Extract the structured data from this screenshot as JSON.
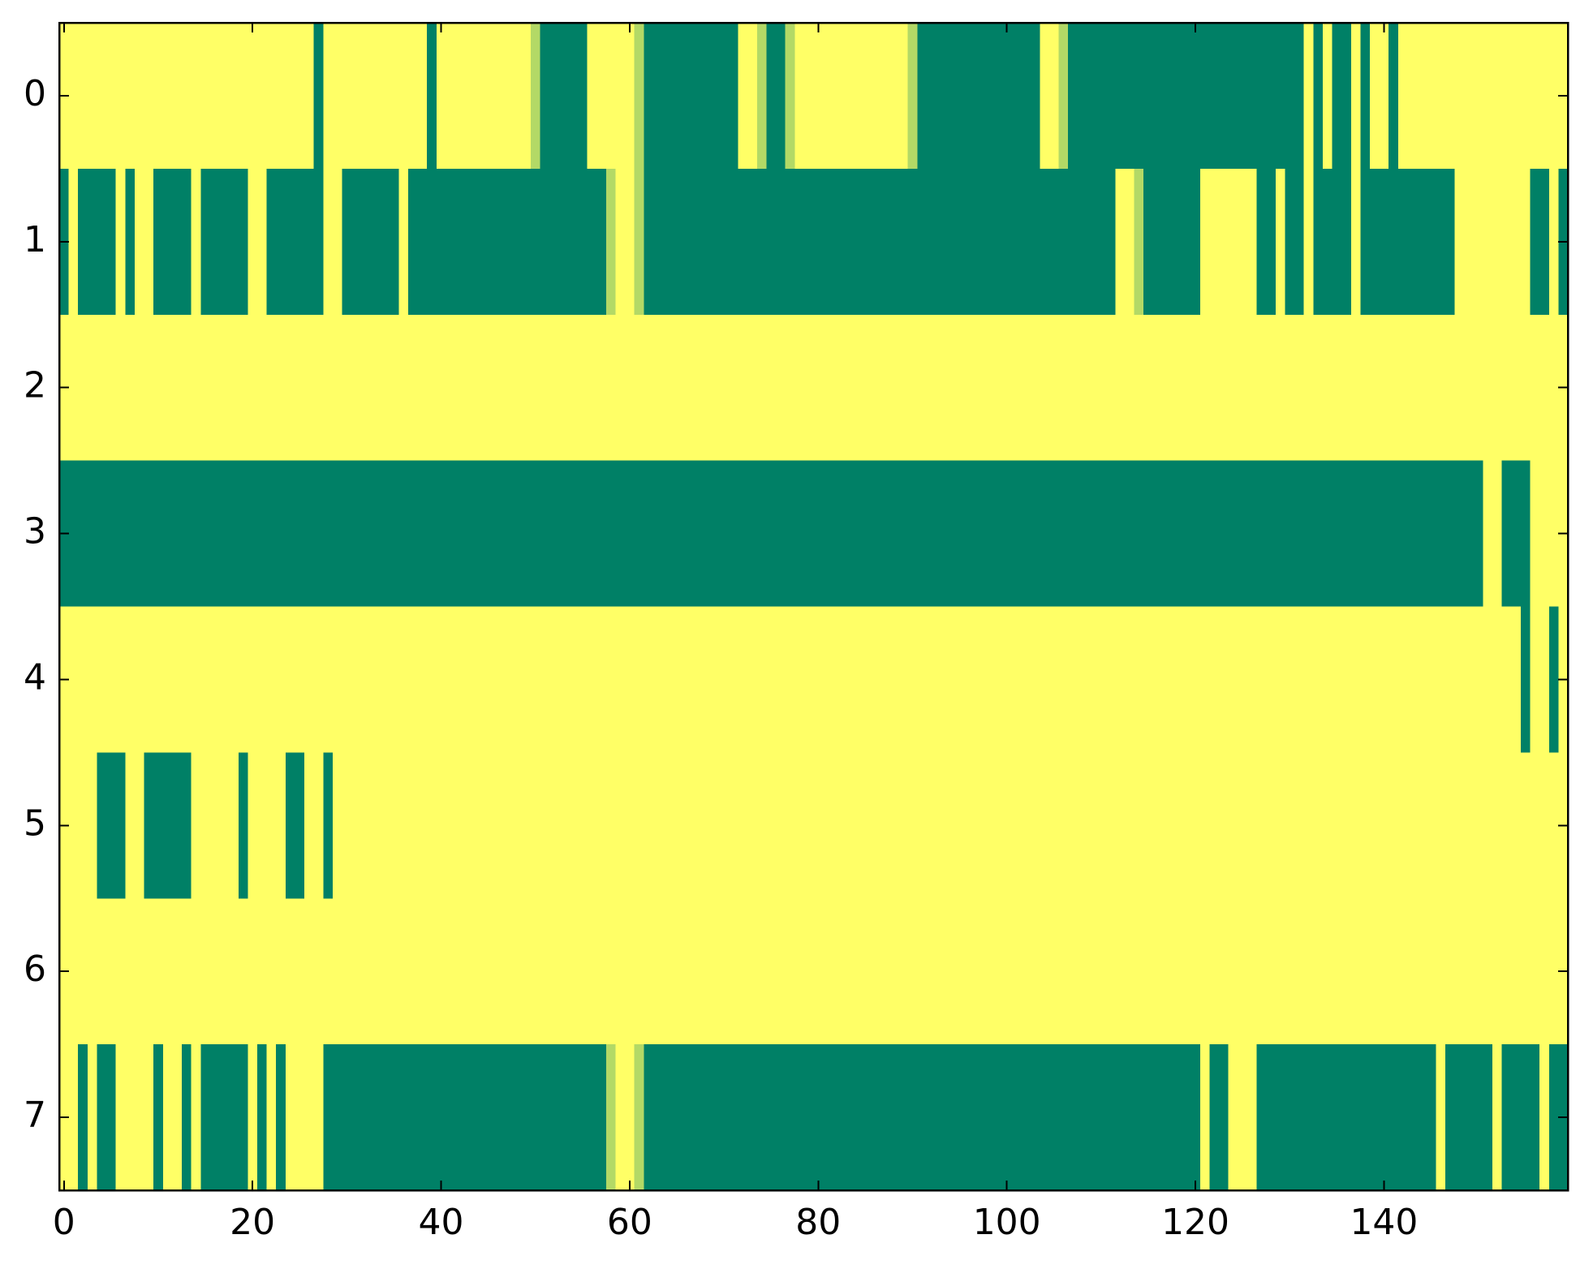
{
  "chart_data": {
    "type": "heatmap",
    "colormap": [
      "#008066",
      "#ffff66"
    ],
    "xlim": [
      -0.5,
      159.5
    ],
    "xticks": [
      0,
      20,
      40,
      60,
      80,
      100,
      120,
      140
    ],
    "ylim": [
      7.5,
      -0.5
    ],
    "yticks": [
      0,
      1,
      2,
      3,
      4,
      5,
      6,
      7
    ],
    "values": [
      [
        1,
        1,
        1,
        1,
        1,
        1,
        1,
        1,
        1,
        1,
        1,
        1,
        1,
        1,
        1,
        1,
        1,
        1,
        1,
        1,
        1,
        1,
        1,
        1,
        1,
        1,
        1,
        0,
        1,
        1,
        1,
        1,
        1,
        1,
        1,
        1,
        1,
        1,
        1,
        0,
        1,
        1,
        1,
        1,
        1,
        1,
        1,
        1,
        1,
        1,
        0.7,
        0,
        0,
        0,
        0,
        0,
        1,
        1,
        1,
        1,
        1,
        0.7,
        0,
        0,
        0,
        0,
        0,
        0,
        0,
        0,
        0,
        0,
        1,
        1,
        0.7,
        0,
        0,
        0.7,
        1,
        1,
        1,
        1,
        1,
        1,
        1,
        1,
        1,
        1,
        1,
        1,
        0.7,
        0,
        0,
        0,
        0,
        0,
        0,
        0,
        0,
        0,
        0,
        0,
        0,
        0,
        1,
        1,
        0.7,
        0,
        0,
        0,
        0,
        0,
        0,
        0,
        0,
        0,
        0,
        0,
        0,
        0,
        0,
        0,
        0,
        0,
        0,
        0,
        0,
        0,
        0,
        0,
        0,
        0,
        1,
        0,
        1,
        0,
        0,
        1,
        0,
        1,
        1,
        0,
        1,
        1,
        1,
        1,
        1,
        1,
        1,
        1,
        1,
        1,
        1,
        1,
        1,
        1,
        1,
        1,
        1,
        1
      ],
      [
        0,
        1,
        0,
        0,
        0,
        0,
        1,
        0,
        1,
        1,
        0,
        0,
        0,
        0,
        1,
        0,
        0,
        0,
        0,
        0,
        1,
        1,
        0,
        0,
        0,
        0,
        0,
        0,
        1,
        1,
        0,
        0,
        0,
        0,
        0,
        0,
        1,
        0,
        0,
        0,
        0,
        0,
        0,
        0,
        0,
        0,
        0,
        0,
        0,
        0,
        0,
        0,
        0,
        0,
        0,
        0,
        0,
        0,
        0.7,
        1,
        1,
        0.7,
        0,
        0,
        0,
        0,
        0,
        0,
        0,
        0,
        0,
        0,
        0,
        0,
        0,
        0,
        0,
        0,
        0,
        0,
        0,
        0,
        0,
        0,
        0,
        0,
        0,
        0,
        0,
        0,
        0,
        0,
        0,
        0,
        0,
        0,
        0,
        0,
        0,
        0,
        0,
        0,
        0,
        0,
        0,
        0,
        0,
        0,
        0,
        0,
        0,
        0,
        1,
        1,
        0.7,
        0,
        0,
        0,
        0,
        0,
        0,
        1,
        1,
        1,
        1,
        1,
        1,
        0,
        0,
        1,
        0,
        0,
        1,
        0,
        0,
        0,
        0,
        1,
        0,
        0,
        0,
        0,
        0,
        0,
        0,
        0,
        0,
        0,
        1,
        1,
        1,
        1,
        1,
        1,
        1,
        1,
        0,
        0,
        1,
        0
      ],
      [
        1,
        1,
        1,
        1,
        1,
        1,
        1,
        1,
        1,
        1,
        1,
        1,
        1,
        1,
        1,
        1,
        1,
        1,
        1,
        1,
        1,
        1,
        1,
        1,
        1,
        1,
        1,
        1,
        1,
        1,
        1,
        1,
        1,
        1,
        1,
        1,
        1,
        1,
        1,
        1,
        1,
        1,
        1,
        1,
        1,
        1,
        1,
        1,
        1,
        1,
        1,
        1,
        1,
        1,
        1,
        1,
        1,
        1,
        1,
        1,
        1,
        1,
        1,
        1,
        1,
        1,
        1,
        1,
        1,
        1,
        1,
        1,
        1,
        1,
        1,
        1,
        1,
        1,
        1,
        1,
        1,
        1,
        1,
        1,
        1,
        1,
        1,
        1,
        1,
        1,
        1,
        1,
        1,
        1,
        1,
        1,
        1,
        1,
        1,
        1,
        1,
        1,
        1,
        1,
        1,
        1,
        1,
        1,
        1,
        1,
        1,
        1,
        1,
        1,
        1,
        1,
        1,
        1,
        1,
        1,
        1,
        1,
        1,
        1,
        1,
        1,
        1,
        1,
        1,
        1,
        1,
        1,
        1,
        1,
        1,
        1,
        1,
        1,
        1,
        1,
        1,
        1,
        1,
        1,
        1,
        1,
        1,
        1,
        1,
        1,
        1,
        1,
        1,
        1,
        1,
        1,
        1,
        1,
        1,
        1
      ],
      [
        0,
        0,
        0,
        0,
        0,
        0,
        0,
        0,
        0,
        0,
        0,
        0,
        0,
        0,
        0,
        0,
        0,
        0,
        0,
        0,
        0,
        0,
        0,
        0,
        0,
        0,
        0,
        0,
        0,
        0,
        0,
        0,
        0,
        0,
        0,
        0,
        0,
        0,
        0,
        0,
        0,
        0,
        0,
        0,
        0,
        0,
        0,
        0,
        0,
        0,
        0,
        0,
        0,
        0,
        0,
        0,
        0,
        0,
        0,
        0,
        0,
        0,
        0,
        0,
        0,
        0,
        0,
        0,
        0,
        0,
        0,
        0,
        0,
        0,
        0,
        0,
        0,
        0,
        0,
        0,
        0,
        0,
        0,
        0,
        0,
        0,
        0,
        0,
        0,
        0,
        0,
        0,
        0,
        0,
        0,
        0,
        0,
        0,
        0,
        0,
        0,
        0,
        0,
        0,
        0,
        0,
        0,
        0,
        0,
        0,
        0,
        0,
        0,
        0,
        0,
        0,
        0,
        0,
        0,
        0,
        0,
        0,
        0,
        0,
        0,
        0,
        0,
        0,
        0,
        0,
        0,
        0,
        0,
        0,
        0,
        0,
        0,
        0,
        0,
        0,
        0,
        0,
        0,
        0,
        0,
        0,
        0,
        0,
        0,
        0,
        0,
        1,
        1,
        0,
        0,
        0,
        1,
        1,
        1,
        1
      ],
      [
        1,
        1,
        1,
        1,
        1,
        1,
        1,
        1,
        1,
        1,
        1,
        1,
        1,
        1,
        1,
        1,
        1,
        1,
        1,
        1,
        1,
        1,
        1,
        1,
        1,
        1,
        1,
        1,
        1,
        1,
        1,
        1,
        1,
        1,
        1,
        1,
        1,
        1,
        1,
        1,
        1,
        1,
        1,
        1,
        1,
        1,
        1,
        1,
        1,
        1,
        1,
        1,
        1,
        1,
        1,
        1,
        1,
        1,
        1,
        1,
        1,
        1,
        1,
        1,
        1,
        1,
        1,
        1,
        1,
        1,
        1,
        1,
        1,
        1,
        1,
        1,
        1,
        1,
        1,
        1,
        1,
        1,
        1,
        1,
        1,
        1,
        1,
        1,
        1,
        1,
        1,
        1,
        1,
        1,
        1,
        1,
        1,
        1,
        1,
        1,
        1,
        1,
        1,
        1,
        1,
        1,
        1,
        1,
        1,
        1,
        1,
        1,
        1,
        1,
        1,
        1,
        1,
        1,
        1,
        1,
        1,
        1,
        1,
        1,
        1,
        1,
        1,
        1,
        1,
        1,
        1,
        1,
        1,
        1,
        1,
        1,
        1,
        1,
        1,
        1,
        1,
        1,
        1,
        1,
        1,
        1,
        1,
        1,
        1,
        1,
        1,
        1,
        1,
        1,
        1,
        0,
        1,
        1,
        0,
        1
      ],
      [
        1,
        1,
        1,
        1,
        0,
        0,
        0,
        1,
        1,
        0,
        0,
        0,
        0,
        0,
        1,
        1,
        1,
        1,
        1,
        0,
        1,
        1,
        1,
        1,
        0,
        0,
        1,
        1,
        0,
        1,
        1,
        1,
        1,
        1,
        1,
        1,
        1,
        1,
        1,
        1,
        1,
        1,
        1,
        1,
        1,
        1,
        1,
        1,
        1,
        1,
        1,
        1,
        1,
        1,
        1,
        1,
        1,
        1,
        1,
        1,
        1,
        1,
        1,
        1,
        1,
        1,
        1,
        1,
        1,
        1,
        1,
        1,
        1,
        1,
        1,
        1,
        1,
        1,
        1,
        1,
        1,
        1,
        1,
        1,
        1,
        1,
        1,
        1,
        1,
        1,
        1,
        1,
        1,
        1,
        1,
        1,
        1,
        1,
        1,
        1,
        1,
        1,
        1,
        1,
        1,
        1,
        1,
        1,
        1,
        1,
        1,
        1,
        1,
        1,
        1,
        1,
        1,
        1,
        1,
        1,
        1,
        1,
        1,
        1,
        1,
        1,
        1,
        1,
        1,
        1,
        1,
        1,
        1,
        1,
        1,
        1,
        1,
        1,
        1,
        1,
        1,
        1,
        1,
        1,
        1,
        1,
        1,
        1,
        1,
        1,
        1,
        1,
        1,
        1,
        1,
        1,
        1,
        1,
        1,
        1
      ],
      [
        1,
        1,
        1,
        1,
        1,
        1,
        1,
        1,
        1,
        1,
        1,
        1,
        1,
        1,
        1,
        1,
        1,
        1,
        1,
        1,
        1,
        1,
        1,
        1,
        1,
        1,
        1,
        1,
        1,
        1,
        1,
        1,
        1,
        1,
        1,
        1,
        1,
        1,
        1,
        1,
        1,
        1,
        1,
        1,
        1,
        1,
        1,
        1,
        1,
        1,
        1,
        1,
        1,
        1,
        1,
        1,
        1,
        1,
        1,
        1,
        1,
        1,
        1,
        1,
        1,
        1,
        1,
        1,
        1,
        1,
        1,
        1,
        1,
        1,
        1,
        1,
        1,
        1,
        1,
        1,
        1,
        1,
        1,
        1,
        1,
        1,
        1,
        1,
        1,
        1,
        1,
        1,
        1,
        1,
        1,
        1,
        1,
        1,
        1,
        1,
        1,
        1,
        1,
        1,
        1,
        1,
        1,
        1,
        1,
        1,
        1,
        1,
        1,
        1,
        1,
        1,
        1,
        1,
        1,
        1,
        1,
        1,
        1,
        1,
        1,
        1,
        1,
        1,
        1,
        1,
        1,
        1,
        1,
        1,
        1,
        1,
        1,
        1,
        1,
        1,
        1,
        1,
        1,
        1,
        1,
        1,
        1,
        1,
        1,
        1,
        1,
        1,
        1,
        1,
        1,
        1,
        1,
        1,
        1,
        1
      ],
      [
        1,
        1,
        0,
        1,
        0,
        0,
        1,
        1,
        1,
        1,
        0,
        1,
        1,
        0,
        1,
        0,
        0,
        0,
        0,
        0,
        1,
        0,
        1,
        0,
        1,
        1,
        1,
        1,
        0,
        0,
        0,
        0,
        0,
        0,
        0,
        0,
        0,
        0,
        0,
        0,
        0,
        0,
        0,
        0,
        0,
        0,
        0,
        0,
        0,
        0,
        0,
        0,
        0,
        0,
        0,
        0,
        0,
        0,
        0.7,
        1,
        1,
        0.7,
        0,
        0,
        0,
        0,
        0,
        0,
        0,
        0,
        0,
        0,
        0,
        0,
        0,
        0,
        0,
        0,
        0,
        0,
        0,
        0,
        0,
        0,
        0,
        0,
        0,
        0,
        0,
        0,
        0,
        0,
        0,
        0,
        0,
        0,
        0,
        0,
        0,
        0,
        0,
        0,
        0,
        0,
        0,
        0,
        0,
        0,
        0,
        0,
        0,
        0,
        0,
        0,
        0,
        0,
        0,
        0,
        0,
        0,
        0,
        1,
        0,
        0,
        1,
        1,
        1,
        0,
        0,
        0,
        0,
        0,
        0,
        0,
        0,
        0,
        0,
        0,
        0,
        0,
        0,
        0,
        0,
        0,
        0,
        0,
        1,
        0,
        0,
        0,
        0,
        0,
        1,
        0,
        0,
        0,
        0,
        1,
        0,
        0
      ]
    ]
  }
}
